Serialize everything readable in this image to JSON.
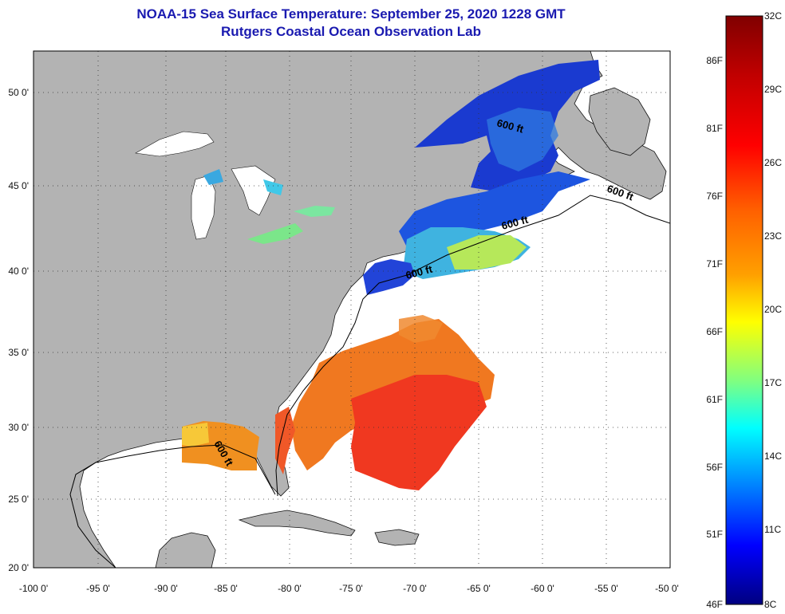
{
  "header": {
    "title": "NOAA-15 Sea Surface Temperature:  September 25, 2020 1228 GMT",
    "subtitle": "Rutgers Coastal Ocean Observation Lab"
  },
  "axes": {
    "longitude_ticks": [
      "-100 0'",
      "-95 0'",
      "-90 0'",
      "-85 0'",
      "-80 0'",
      "-75 0'",
      "-70 0'",
      "-65 0'",
      "-60 0'",
      "-55 0'",
      "-50 0'"
    ],
    "latitude_ticks": [
      "50 0'",
      "45 0'",
      "40 0'",
      "35 0'",
      "30 0'",
      "25 0'",
      "20 0'"
    ]
  },
  "contour": {
    "label": "600 ft",
    "label_count": 5
  },
  "colorbar": {
    "celsius_labels": [
      "32C",
      "29C",
      "26C",
      "23C",
      "20C",
      "17C",
      "14C",
      "11C",
      "8C"
    ],
    "fahrenheit_labels": [
      "86F",
      "81F",
      "76F",
      "71F",
      "66F",
      "61F",
      "56F",
      "51F",
      "46F"
    ],
    "gradient_colors": [
      "#800000",
      "#c00000",
      "#ff0000",
      "#ff6000",
      "#ffa000",
      "#ffff00",
      "#80ff80",
      "#00ffff",
      "#0080ff",
      "#0000ff",
      "#000080"
    ]
  },
  "colors": {
    "land": "#b3b3b3",
    "ocean_no_data": "#ffffff",
    "title_text": "#1a1ab0"
  }
}
